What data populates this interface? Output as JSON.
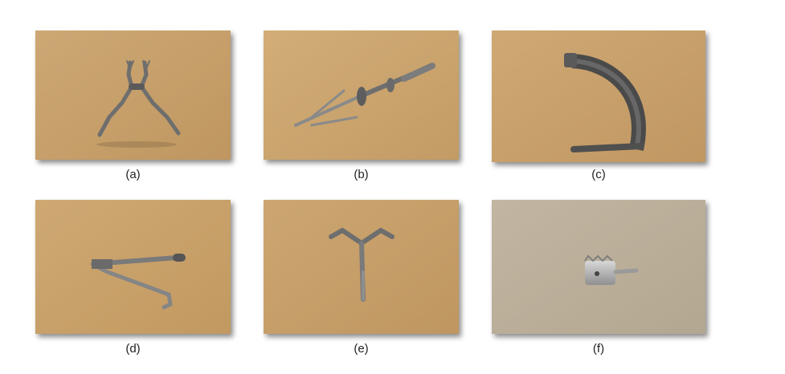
{
  "panels": [
    {
      "id": "a",
      "caption": "(a)",
      "subject": "pliers-instrument",
      "background": "#c7a06c"
    },
    {
      "id": "b",
      "caption": "(b)",
      "subject": "clamp-instrument",
      "background": "#caa56f"
    },
    {
      "id": "c",
      "caption": "(c)",
      "subject": "curved-guide-instrument",
      "background": "#c9a26c"
    },
    {
      "id": "d",
      "caption": "(d)",
      "subject": "hooked-lever-instrument",
      "background": "#c8a068"
    },
    {
      "id": "e",
      "caption": "(e)",
      "subject": "y-shaped-instrument",
      "background": "#c6a068"
    },
    {
      "id": "f",
      "caption": "(f)",
      "subject": "reamer-drill-bit",
      "background": "#bcb09c"
    }
  ]
}
